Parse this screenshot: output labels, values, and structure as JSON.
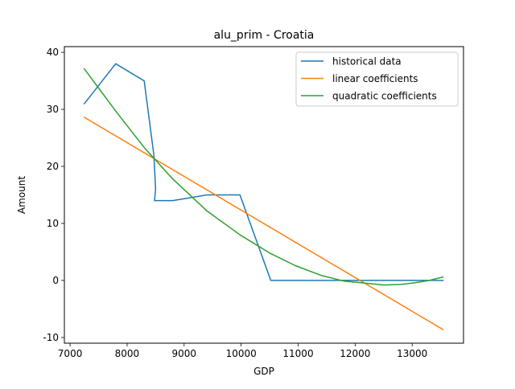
{
  "chart_data": {
    "type": "line",
    "title": "alu_prim - Croatia",
    "xlabel": "GDP",
    "ylabel": "Amount",
    "xlim": [
      6900,
      13900
    ],
    "ylim": [
      -11,
      41
    ],
    "xticks": [
      7000,
      8000,
      9000,
      10000,
      11000,
      12000,
      13000
    ],
    "yticks": [
      -10,
      0,
      10,
      20,
      30,
      40
    ],
    "grid": false,
    "legend_position": "top-right",
    "series": [
      {
        "name": "historical data",
        "color": "#1f77b4",
        "x": [
          7250,
          7800,
          8300,
          8470,
          8500,
          8480,
          8800,
          9400,
          9980,
          10520,
          11000,
          11500,
          12000,
          12500,
          12800,
          12600,
          13000,
          13540
        ],
        "y": [
          31,
          38,
          35,
          22,
          16,
          14,
          14,
          15,
          15,
          0,
          0,
          0,
          0,
          0,
          0,
          0,
          0,
          0
        ]
      },
      {
        "name": "linear coefficients",
        "color": "#ff7f0e",
        "x": [
          7250,
          13540
        ],
        "y": [
          28.6,
          -8.6
        ]
      },
      {
        "name": "quadratic coefficients",
        "color": "#2ca02c",
        "x": [
          7250,
          7800,
          8300,
          8800,
          9400,
          9980,
          10520,
          10950,
          11400,
          11800,
          12100,
          12500,
          12800,
          13050,
          13300,
          13540
        ],
        "y": [
          37.1,
          29.7,
          23.3,
          17.8,
          12.2,
          8.0,
          4.7,
          2.6,
          0.9,
          -0.1,
          -0.4,
          -0.8,
          -0.7,
          -0.4,
          0.0,
          0.6
        ]
      }
    ]
  }
}
